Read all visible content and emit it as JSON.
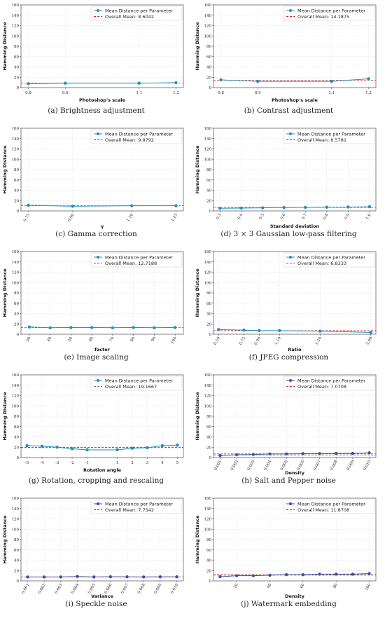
{
  "colors": {
    "series": "#1f8fbf",
    "series_alt": "#3b4fa8",
    "mean_red": "#d62728",
    "mean_gray": "#777777",
    "grid": "#dddddd"
  },
  "chart_data": [
    {
      "id": "a",
      "type": "line",
      "caption": "(a) Brightness adjustment",
      "xlabel": "Photoshop's scale",
      "ylabel": "Hamming Distance",
      "x_tick_labels": [
        "0.8",
        "0.9",
        "1.1",
        "1.2"
      ],
      "x": [
        0.8,
        0.9,
        1.1,
        1.2
      ],
      "x_range": [
        0.78,
        1.22
      ],
      "ylim": [
        0,
        160
      ],
      "y_ticks": [
        0,
        20,
        40,
        60,
        80,
        100,
        120,
        140,
        160
      ],
      "x_tick_rotate": false,
      "series": [
        {
          "name": "Mean Distance per Parameter",
          "values": [
            7.5,
            8.5,
            8.5,
            9.5
          ]
        }
      ],
      "mean_line": {
        "label": "Overall Mean: 8.6042",
        "value": 8.6042,
        "style": "red"
      },
      "legend_loc": "top-right",
      "grid": true
    },
    {
      "id": "b",
      "type": "line",
      "caption": "(b) Contrast adjustment",
      "xlabel": "Photoshop's scale",
      "ylabel": "Hamming Distance",
      "x_tick_labels": [
        "0.8",
        "0.9",
        "1.1",
        "1.2"
      ],
      "x": [
        0.8,
        0.9,
        1.1,
        1.2
      ],
      "x_range": [
        0.78,
        1.22
      ],
      "ylim": [
        0,
        160
      ],
      "y_ticks": [
        0,
        20,
        40,
        60,
        80,
        100,
        120,
        140,
        160
      ],
      "x_tick_rotate": false,
      "series": [
        {
          "name": "Mean Distance per Parameter",
          "values": [
            15,
            12,
            12,
            17
          ]
        }
      ],
      "mean_line": {
        "label": "Overall Mean: 14.1875",
        "value": 14.1875,
        "style": "red"
      },
      "legend_loc": "top-right",
      "grid": true
    },
    {
      "id": "c",
      "type": "line",
      "caption": "(c) Gamma correction",
      "xlabel": "γ",
      "ylabel": "Hamming Distance",
      "x_tick_labels": [
        "0.75",
        "0.90",
        "1.10",
        "1.25"
      ],
      "x": [
        0.75,
        0.9,
        1.1,
        1.25
      ],
      "x_range": [
        0.725,
        1.275
      ],
      "ylim": [
        0,
        160
      ],
      "y_ticks": [
        0,
        20,
        40,
        60,
        80,
        100,
        120,
        140,
        160
      ],
      "x_tick_rotate": true,
      "series": [
        {
          "name": "Mean Distance per Parameter",
          "values": [
            11,
            9,
            10,
            10
          ]
        }
      ],
      "mean_line": {
        "label": "Overall Mean: 9.9792",
        "value": 9.9792,
        "style": "red"
      },
      "legend_loc": "top-right",
      "grid": true
    },
    {
      "id": "d",
      "type": "line",
      "caption": "(d) 3 × 3 Gaussian low-pass filtering",
      "xlabel": "Standard deviation",
      "ylabel": "Hamming Distance",
      "x_tick_labels": [
        "0.3",
        "0.4",
        "0.5",
        "0.6",
        "0.7",
        "0.8",
        "0.9",
        "1.0"
      ],
      "x": [
        0.3,
        0.4,
        0.5,
        0.6,
        0.7,
        0.8,
        0.9,
        1.0
      ],
      "x_range": [
        0.27,
        1.03
      ],
      "ylim": [
        0,
        160
      ],
      "y_ticks": [
        0,
        20,
        40,
        60,
        80,
        100,
        120,
        140,
        160
      ],
      "x_tick_rotate": true,
      "series": [
        {
          "name": "Mean Distance per Parameter",
          "values": [
            5,
            5.5,
            6,
            6.5,
            6.8,
            7.2,
            7.5,
            8
          ]
        }
      ],
      "mean_line": {
        "label": "Overall Mean: 6.5781",
        "value": 6.5781,
        "style": "red"
      },
      "legend_loc": "top-right",
      "grid": true
    },
    {
      "id": "e",
      "type": "line",
      "caption": "(e) Image scaling",
      "xlabel": "factor",
      "ylabel": "Hamming Distance",
      "x_tick_labels": [
        "30",
        "40",
        "50",
        "60",
        "70",
        "80",
        "90",
        "100"
      ],
      "x": [
        30,
        40,
        50,
        60,
        70,
        80,
        90,
        100
      ],
      "x_range": [
        26,
        104
      ],
      "ylim": [
        0,
        160
      ],
      "y_ticks": [
        0,
        20,
        40,
        60,
        80,
        100,
        120,
        140,
        160
      ],
      "x_tick_rotate": true,
      "series": [
        {
          "name": "Mean Distance per Parameter",
          "values": [
            14,
            12.5,
            13,
            13,
            12.5,
            13,
            12.5,
            13
          ]
        }
      ],
      "mean_line": {
        "label": "Overall Mean: 12.7188",
        "value": 12.7188,
        "style": "red"
      },
      "legend_loc": "top-right",
      "grid": true
    },
    {
      "id": "f",
      "type": "line",
      "caption": "(f) JPEG compression",
      "xlabel": "Ratio",
      "ylabel": "Hamming Distance",
      "x_tick_labels": [
        "0.50",
        "0.75",
        "0.90",
        "1.10",
        "1.50",
        "2.00"
      ],
      "x": [
        0.5,
        0.75,
        0.9,
        1.1,
        1.5,
        2.0
      ],
      "x_range": [
        0.45,
        2.05
      ],
      "ylim": [
        0,
        160
      ],
      "y_ticks": [
        0,
        20,
        40,
        60,
        80,
        100,
        120,
        140,
        160
      ],
      "x_tick_rotate": true,
      "series": [
        {
          "name": "Mean Distance per Parameter",
          "values": [
            9,
            8,
            7,
            7,
            6,
            3.5
          ]
        }
      ],
      "mean_line": {
        "label": "Overall Mean: 6.8333",
        "value": 6.8333,
        "style": "red"
      },
      "legend_loc": "top-right",
      "grid": true
    },
    {
      "id": "g",
      "type": "line",
      "caption": "(g) Rotation, cropping and rescaling",
      "xlabel": "Rotation angle",
      "ylabel": "Hamming Distance",
      "x_tick_labels": [
        "-5",
        "-4",
        "-3",
        "-2",
        "-1",
        "1",
        "2",
        "3",
        "4",
        "5"
      ],
      "x": [
        -5,
        -4,
        -3,
        -2,
        -1,
        1,
        2,
        3,
        4,
        5
      ],
      "x_range": [
        -5.4,
        5.4
      ],
      "ylim": [
        0,
        160
      ],
      "y_ticks": [
        0,
        20,
        40,
        60,
        80,
        100,
        120,
        140,
        160
      ],
      "x_tick_rotate": false,
      "series": [
        {
          "name": "Mean Distance per Parameter",
          "values": [
            23,
            22,
            20,
            17,
            15,
            15,
            18,
            19,
            23,
            24
          ]
        }
      ],
      "mean_line": {
        "label": "Overall Mean: 19.1667",
        "value": 19.1667,
        "style": "gray"
      },
      "extra_line": {
        "value": 20,
        "style": "red"
      },
      "legend_loc": "top-right",
      "grid": true
    },
    {
      "id": "h",
      "type": "line",
      "caption": "(h) Salt and Pepper noise",
      "xlabel": "Density",
      "ylabel": "Hamming Distance",
      "x_tick_labels": [
        "0.001",
        "0.002",
        "0.003",
        "0.004",
        "0.005",
        "0.006",
        "0.007",
        "0.008",
        "0.009",
        "0.010"
      ],
      "x": [
        0.001,
        0.002,
        0.003,
        0.004,
        0.005,
        0.006,
        0.007,
        0.008,
        0.009,
        0.01
      ],
      "x_range": [
        0.0006,
        0.0104
      ],
      "ylim": [
        0,
        160
      ],
      "y_ticks": [
        0,
        20,
        40,
        60,
        80,
        100,
        120,
        140,
        160
      ],
      "x_tick_rotate": true,
      "series": [
        {
          "name": "Mean Distance per Parameter",
          "values": [
            4,
            5.5,
            6,
            7,
            7,
            7.5,
            7.5,
            8,
            8,
            9
          ]
        }
      ],
      "mean_line": {
        "label": "Overall Mean: 7.0708",
        "value": 7.0708,
        "style": "red"
      },
      "extra_line": {
        "value": 5,
        "style": "gray"
      },
      "legend_loc": "top-right",
      "grid": true,
      "alt_color": true
    },
    {
      "id": "i",
      "type": "line",
      "caption": "(i) Speckle noise",
      "xlabel": "Variance",
      "ylabel": "Hamming Distance",
      "x_tick_labels": [
        "0.001",
        "0.002",
        "0.003",
        "0.004",
        "0.005",
        "0.006",
        "0.007",
        "0.008",
        "0.009",
        "0.010"
      ],
      "x": [
        0.001,
        0.002,
        0.003,
        0.004,
        0.005,
        0.006,
        0.007,
        0.008,
        0.009,
        0.01
      ],
      "x_range": [
        0.0006,
        0.0104
      ],
      "ylim": [
        0,
        160
      ],
      "y_ticks": [
        0,
        20,
        40,
        60,
        80,
        100,
        120,
        140,
        160
      ],
      "x_tick_rotate": true,
      "series": [
        {
          "name": "Mean Distance per Parameter",
          "values": [
            7.5,
            7.5,
            7.5,
            8.5,
            7.5,
            8,
            7.8,
            7.5,
            7.8,
            7.8
          ]
        }
      ],
      "mean_line": {
        "label": "Overall Mean: 7.7542",
        "value": 7.7542,
        "style": "red"
      },
      "legend_loc": "top-right",
      "grid": true,
      "alt_color": true
    },
    {
      "id": "j",
      "type": "line",
      "caption": "(j) Watermark embedding",
      "xlabel": "Density",
      "ylabel": "Hamming Distance",
      "x_tick_labels": [
        "20",
        "40",
        "60",
        "80",
        "100"
      ],
      "x_ticks": [
        20,
        40,
        60,
        80,
        100
      ],
      "x": [
        10,
        20,
        30,
        40,
        50,
        60,
        70,
        80,
        90,
        100
      ],
      "x_range": [
        6,
        104
      ],
      "ylim": [
        0,
        160
      ],
      "y_ticks": [
        0,
        20,
        40,
        60,
        80,
        100,
        120,
        140,
        160
      ],
      "x_tick_rotate": true,
      "series": [
        {
          "name": "Mean Distance per Parameter",
          "values": [
            8,
            10,
            10,
            11,
            12,
            12,
            13,
            13,
            13,
            14
          ]
        }
      ],
      "mean_line": {
        "label": "Overall Mean: 11.8708",
        "value": 11.8708,
        "style": "red"
      },
      "extra_line": {
        "value": 11,
        "style": "gray"
      },
      "legend_loc": "top-right",
      "grid": true,
      "alt_color": true
    }
  ]
}
